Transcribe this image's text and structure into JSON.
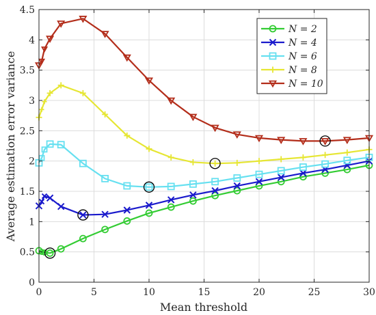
{
  "chart_data": {
    "type": "line",
    "xlabel": "Mean threshold",
    "ylabel": "Average estimation error variance",
    "xlim": [
      0,
      30
    ],
    "ylim": [
      0,
      4.5
    ],
    "x_ticks": [
      0,
      5,
      10,
      15,
      20,
      25,
      30
    ],
    "y_ticks": [
      0,
      0.5,
      1,
      1.5,
      2,
      2.5,
      3,
      3.5,
      4,
      4.5
    ],
    "y_tick_labels": [
      "0",
      "0.5",
      "1",
      "1.5",
      "2",
      "2.5",
      "3",
      "3.5",
      "4",
      "4.5"
    ],
    "grid": true,
    "legend_position": "top-right",
    "series": [
      {
        "name": "N = 2",
        "color": "#33cc33",
        "marker": "circle",
        "x": [
          0,
          0.25,
          0.5,
          1,
          2,
          4,
          6,
          8,
          10,
          12,
          14,
          16,
          18,
          20,
          22,
          24,
          26,
          28,
          30
        ],
        "y": [
          0.52,
          0.5,
          0.49,
          0.48,
          0.55,
          0.72,
          0.87,
          1.01,
          1.14,
          1.24,
          1.34,
          1.43,
          1.51,
          1.59,
          1.66,
          1.74,
          1.8,
          1.86,
          1.93
        ],
        "highlight": [
          1,
          0.48
        ]
      },
      {
        "name": "N = 4",
        "color": "#1a1acc",
        "marker": "x",
        "x": [
          0,
          0.25,
          0.5,
          1,
          2,
          4,
          6,
          8,
          10,
          12,
          14,
          16,
          18,
          20,
          22,
          24,
          26,
          28,
          30
        ],
        "y": [
          1.26,
          1.33,
          1.42,
          1.39,
          1.25,
          1.11,
          1.12,
          1.19,
          1.27,
          1.36,
          1.44,
          1.51,
          1.59,
          1.66,
          1.73,
          1.8,
          1.86,
          1.93,
          2.0
        ],
        "highlight": [
          4,
          1.11
        ]
      },
      {
        "name": "N = 6",
        "color": "#66e0f0",
        "marker": "square",
        "x": [
          0,
          0.25,
          0.5,
          1,
          2,
          4,
          6,
          8,
          10,
          12,
          14,
          16,
          18,
          20,
          22,
          24,
          26,
          28,
          30
        ],
        "y": [
          1.97,
          2.05,
          2.19,
          2.28,
          2.27,
          1.96,
          1.71,
          1.59,
          1.57,
          1.58,
          1.62,
          1.66,
          1.72,
          1.78,
          1.84,
          1.9,
          1.95,
          2.01,
          2.06
        ],
        "highlight": [
          10,
          1.57
        ]
      },
      {
        "name": "N = 8",
        "color": "#e6e633",
        "marker": "plus",
        "x": [
          0,
          0.25,
          0.5,
          1,
          2,
          4,
          6,
          8,
          10,
          12,
          14,
          16,
          18,
          20,
          22,
          24,
          26,
          28,
          30
        ],
        "y": [
          2.72,
          2.85,
          2.98,
          3.12,
          3.25,
          3.12,
          2.77,
          2.42,
          2.2,
          2.06,
          1.98,
          1.96,
          1.97,
          2.0,
          2.03,
          2.06,
          2.1,
          2.14,
          2.19
        ],
        "highlight": [
          16,
          1.96
        ]
      },
      {
        "name": "N = 10",
        "color": "#b32d1a",
        "marker": "triangle-down",
        "x": [
          0,
          0.25,
          0.5,
          1,
          2,
          4,
          6,
          8,
          10,
          12,
          14,
          16,
          18,
          20,
          22,
          24,
          26,
          28,
          30
        ],
        "y": [
          3.58,
          3.65,
          3.85,
          4.02,
          4.27,
          4.35,
          4.1,
          3.71,
          3.33,
          3.0,
          2.73,
          2.55,
          2.44,
          2.38,
          2.35,
          2.33,
          2.33,
          2.35,
          2.38
        ],
        "highlight": [
          26,
          2.33
        ]
      }
    ]
  }
}
